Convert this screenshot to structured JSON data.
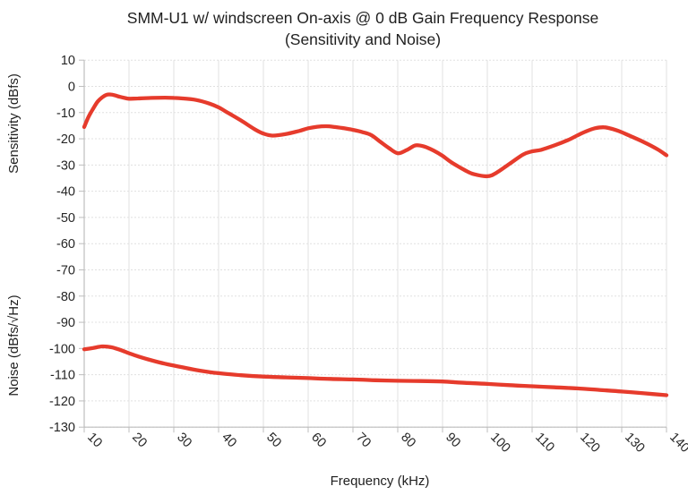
{
  "title": {
    "line1": "SMM-U1 w/ windscreen On-axis @ 0 dB Gain Frequency Response",
    "line2": "(Sensitivity and Noise)"
  },
  "colors": {
    "line": "#e63b2c",
    "grid": "#e0e0e0",
    "axis": "#bdbdbd",
    "text": "#1f1f1f"
  },
  "chart_data": {
    "type": "line",
    "title": "SMM-U1 w/ windscreen On-axis @ 0 dB Gain Frequency Response (Sensitivity and Noise)",
    "xlabel": "Frequency (kHz)",
    "ylabel_top": "Sensitivity (dBfs)",
    "ylabel_bottom": "Noise (dBfs/√Hz)",
    "xlim": [
      10,
      140
    ],
    "ylim": [
      -130,
      10
    ],
    "grid": true,
    "legend_position": "none",
    "x_ticks": [
      10,
      20,
      30,
      40,
      50,
      60,
      70,
      80,
      90,
      100,
      110,
      120,
      130,
      140
    ],
    "y_ticks": [
      10,
      0,
      -10,
      -20,
      -30,
      -40,
      -50,
      -60,
      -70,
      -80,
      -90,
      -100,
      -110,
      -120,
      -130
    ],
    "series": [
      {
        "name": "Sensitivity",
        "x": [
          10,
          11,
          12,
          13,
          14,
          15,
          16,
          17,
          18,
          19,
          20,
          22,
          25,
          28,
          30,
          32,
          35,
          38,
          40,
          42,
          45,
          48,
          50,
          52,
          55,
          58,
          60,
          62,
          64,
          66,
          68,
          70,
          72,
          74,
          76,
          78,
          80,
          82,
          84,
          86,
          88,
          90,
          92,
          95,
          97,
          100,
          102,
          105,
          108,
          110,
          112,
          115,
          118,
          120,
          122,
          124,
          126,
          128,
          130,
          132,
          135,
          138,
          140
        ],
        "y": [
          -15.5,
          -11.5,
          -8.5,
          -5.8,
          -4.2,
          -3.2,
          -3.1,
          -3.5,
          -4,
          -4.4,
          -4.7,
          -4.6,
          -4.4,
          -4.3,
          -4.4,
          -4.6,
          -5.2,
          -6.6,
          -8,
          -10,
          -13,
          -16.3,
          -18,
          -18.8,
          -18.2,
          -17,
          -16,
          -15.4,
          -15.2,
          -15.5,
          -16,
          -16.6,
          -17.4,
          -18.5,
          -21,
          -23.5,
          -25.5,
          -24.3,
          -22.5,
          -23,
          -24.5,
          -26.5,
          -29,
          -32,
          -33.5,
          -34.3,
          -33,
          -29.5,
          -26,
          -24.8,
          -24.2,
          -22.5,
          -20.5,
          -18.8,
          -17.2,
          -16,
          -15.6,
          -16.3,
          -17.5,
          -19,
          -21.3,
          -24,
          -26.3
        ]
      },
      {
        "name": "Noise",
        "x": [
          10,
          12,
          14,
          16,
          18,
          20,
          22,
          25,
          28,
          30,
          32,
          35,
          38,
          40,
          45,
          50,
          55,
          60,
          65,
          70,
          75,
          80,
          85,
          90,
          95,
          100,
          105,
          110,
          115,
          120,
          125,
          130,
          135,
          140
        ],
        "y": [
          -100.3,
          -99.8,
          -99.2,
          -99.5,
          -100.5,
          -101.8,
          -103,
          -104.5,
          -105.8,
          -106.5,
          -107.2,
          -108.2,
          -109,
          -109.4,
          -110.2,
          -110.7,
          -111,
          -111.3,
          -111.6,
          -111.8,
          -112.1,
          -112.3,
          -112.4,
          -112.6,
          -113.1,
          -113.5,
          -114,
          -114.4,
          -114.8,
          -115.2,
          -115.8,
          -116.4,
          -117.1,
          -117.8
        ]
      }
    ]
  }
}
